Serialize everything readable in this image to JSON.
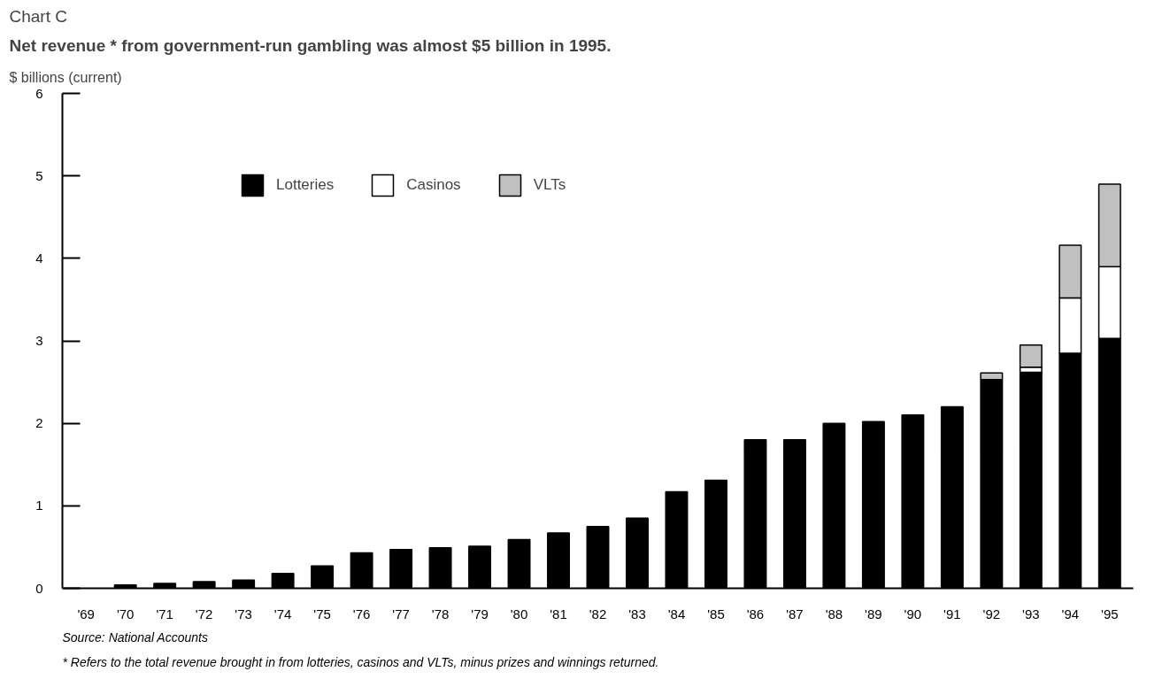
{
  "chart_data": {
    "type": "bar",
    "stacked": true,
    "title": "Chart C",
    "subtitle": "Net revenue * from government-run gambling was almost $5 billion in 1995.",
    "ylabel": "$ billions (current)",
    "categories": [
      "'69",
      "'70",
      "'71",
      "'72",
      "'73",
      "'74",
      "'75",
      "'76",
      "'77",
      "'78",
      "'79",
      "'80",
      "'81",
      "'82",
      "'83",
      "'84",
      "'85",
      "'86",
      "'87",
      "'88",
      "'89",
      "'90",
      "'91",
      "'92",
      "'93",
      "'94",
      "'95"
    ],
    "series": [
      {
        "name": "Lotteries",
        "color": "#000000",
        "values": [
          null,
          0.04,
          0.06,
          0.08,
          0.1,
          0.18,
          0.27,
          0.43,
          0.47,
          0.49,
          0.51,
          0.59,
          0.67,
          0.75,
          0.85,
          1.17,
          1.31,
          1.8,
          1.8,
          2.0,
          2.02,
          2.1,
          2.2,
          2.53,
          2.62,
          2.85,
          3.03
        ]
      },
      {
        "name": "Casinos",
        "color": "#ffffff",
        "values": [
          null,
          null,
          null,
          null,
          null,
          null,
          null,
          null,
          null,
          null,
          null,
          null,
          null,
          null,
          null,
          null,
          null,
          null,
          null,
          null,
          null,
          null,
          null,
          null,
          0.06,
          0.67,
          0.87
        ]
      },
      {
        "name": "VLTs",
        "color": "#c0c0c0",
        "values": [
          null,
          null,
          null,
          null,
          null,
          null,
          null,
          null,
          null,
          null,
          null,
          null,
          null,
          null,
          null,
          null,
          null,
          null,
          null,
          null,
          null,
          null,
          null,
          0.08,
          0.27,
          0.64,
          1.0
        ]
      }
    ],
    "ylim": [
      0,
      6
    ],
    "yticks": [
      0,
      1,
      2,
      3,
      4,
      5,
      6
    ],
    "legend": "top",
    "grid": false,
    "annotations": [
      "Source: National Accounts",
      "*   Refers to the total revenue brought in from lotteries, casinos and VLTs, minus prizes and winnings returned."
    ]
  }
}
